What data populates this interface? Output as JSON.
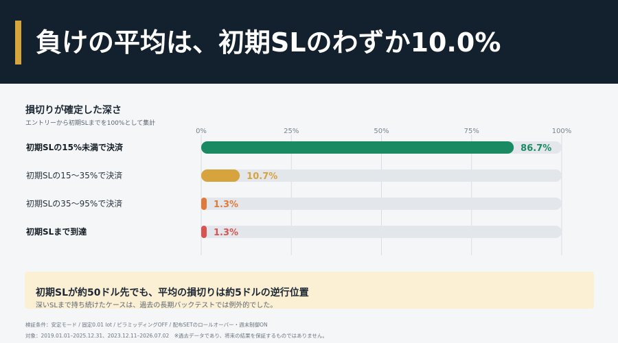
{
  "header": {
    "title": "負けの平均は、初期SLのわずか10.0%",
    "accent_color": "#d6a53c",
    "background_color": "#13202e"
  },
  "chart_data": {
    "type": "bar",
    "orientation": "horizontal",
    "title": "損切りが確定した深さ",
    "subtitle": "エントリーから初期SLまでを100%として集計",
    "categories": [
      "初期SLの15%未満で決済",
      "初期SLの15〜35%で決済",
      "初期SLの35〜95%で決済",
      "初期SLまで到達"
    ],
    "values": [
      86.7,
      10.7,
      1.3,
      1.3
    ],
    "value_labels": [
      "86.7%",
      "10.7%",
      "1.3%",
      "1.3%"
    ],
    "bold_categories": [
      true,
      false,
      false,
      true
    ],
    "colors": [
      "#1a8a63",
      "#d7a33c",
      "#e07a3a",
      "#d9534f"
    ],
    "track_color": "#e3e7eb",
    "xlim": [
      0,
      100
    ],
    "xticks": [
      "0%",
      "25%",
      "50%",
      "75%",
      "100%"
    ],
    "grid": true
  },
  "callout": {
    "title": "初期SLが約50ドル先でも、平均の損切りは約5ドルの逆行位置",
    "text": "深いSLまで持ち続けたケースは、過去の長期バックテストでは例外的でした。"
  },
  "footer": {
    "line1": "検証条件：安定モード / 固定0.01 lot / ピラミッディングOFF / 配布SETのロールオーバー・週末制御ON",
    "line2": "対象：2019.01.01–2025.12.31、2023.12.11–2026.07.02　※過去データであり、将来の結果を保証するものではありません。"
  }
}
